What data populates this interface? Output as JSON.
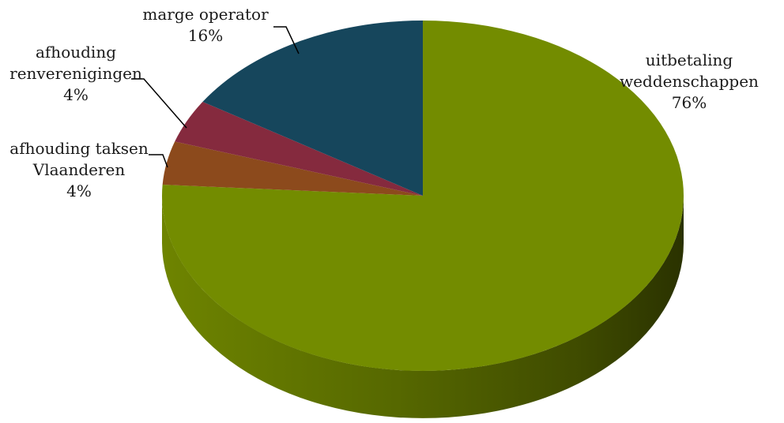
{
  "chart_data": {
    "type": "pie",
    "title": "",
    "labels": [
      "uitbetaling weddenschappen",
      "marge operator",
      "afhouding renverenigingen",
      "afhouding taksen Vlaanderen"
    ],
    "values": [
      76,
      16,
      4,
      4
    ],
    "slices": [
      {
        "name": "uitbetaling weddenschappen",
        "value": 76,
        "label_lines": [
          "uitbetaling",
          "weddenschappen"
        ],
        "value_label": "76%",
        "color": "#738c00"
      },
      {
        "name": "afhouding taksen Vlaanderen",
        "value": 4,
        "label_lines": [
          "afhouding taksen",
          "Vlaanderen"
        ],
        "value_label": "4%",
        "color": "#8c4a1c"
      },
      {
        "name": "afhouding renverenigingen",
        "value": 4,
        "label_lines": [
          "afhouding",
          "renverenigingen"
        ],
        "value_label": "4%",
        "color": "#852a3e"
      },
      {
        "name": "marge operator",
        "value": 16,
        "label_lines": [
          "marge operator"
        ],
        "value_label": "16%",
        "color": "#16465c"
      }
    ],
    "style": "3d",
    "legend": "none"
  }
}
